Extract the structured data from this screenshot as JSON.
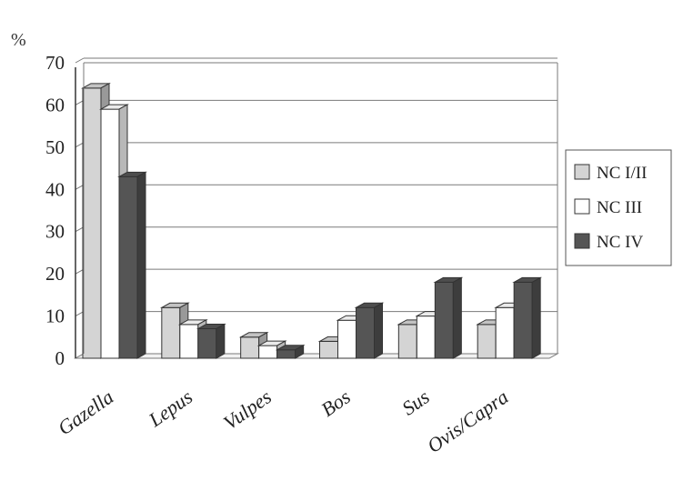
{
  "chart_data": {
    "type": "bar",
    "ylabel": "%",
    "ylim": [
      0,
      70
    ],
    "yticks": [
      "0",
      "10",
      "20",
      "30",
      "40",
      "50",
      "60",
      "70"
    ],
    "grid": true,
    "legend_position": "right",
    "categories": [
      "Gazella",
      "Lepus",
      "Vulpes",
      "Bos",
      "Sus",
      "Ovis/Capra"
    ],
    "series": [
      {
        "name": "NC I/II",
        "values": [
          64,
          12,
          5,
          4,
          8,
          8
        ]
      },
      {
        "name": "NC III",
        "values": [
          59,
          8,
          3,
          9,
          10,
          12
        ]
      },
      {
        "name": "NC IV",
        "values": [
          43,
          7,
          2,
          12,
          18,
          18
        ]
      }
    ],
    "colors": {
      "NC I/II": "#d4d4d4",
      "NC III": "#ffffff",
      "NC IV": "#555555",
      "grid": "#7a7a7a",
      "axis": "#333333"
    }
  }
}
